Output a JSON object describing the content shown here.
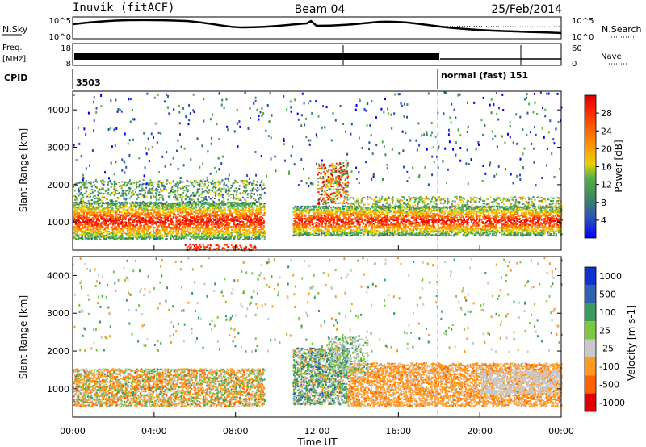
{
  "header": {
    "station": "Inuvik (fitACF)",
    "beam": "Beam 04",
    "date": "25/Feb/2014"
  },
  "noise_panel": {
    "left_label": "N.Sky",
    "right_label": "N.Search",
    "left_ticks": [
      "10^5",
      "10^0"
    ],
    "right_ticks": [
      "10^5",
      "10^0"
    ]
  },
  "freq_panel": {
    "left_label_top": "Freq.",
    "left_label_bottom": "[MHz]",
    "right_label": "Nave",
    "left_ticks": [
      "18",
      "8"
    ],
    "right_ticks": [
      "60",
      "0"
    ]
  },
  "cpid_panel": {
    "label": "CPID",
    "segments": [
      {
        "text": "3503",
        "start_hour": 0
      },
      {
        "text": "normal (fast) 151",
        "start_hour": 18
      }
    ]
  },
  "colors": {
    "power": [
      "#0000ff",
      "#3050b0",
      "#3a8a5a",
      "#52b048",
      "#f0d000",
      "#ff9800",
      "#ff6000",
      "#ff2000",
      "#e00000"
    ],
    "velocity": [
      "#e00000",
      "#ff6000",
      "#ff9a20",
      "#c8c8c8",
      "#7cc840",
      "#3a9a60",
      "#3060b0",
      "#1030d0"
    ]
  },
  "chart_data": [
    {
      "type": "heatmap",
      "panel": "power",
      "xlabel": "",
      "ylabel": "Slant Range [km]",
      "xlim_hours": [
        0,
        24
      ],
      "ylim_km": [
        250,
        4500
      ],
      "yticks": [
        1000,
        2000,
        3000,
        4000
      ],
      "colorbar": {
        "label": "Power [dB]",
        "range": [
          0,
          32
        ],
        "ticks": [
          4,
          8,
          12,
          16,
          20,
          24,
          28
        ]
      },
      "bands": [
        {
          "hours": [
            0,
            9.4
          ],
          "range_km": [
            550,
            1550
          ],
          "value_db": 24
        },
        {
          "hours": [
            10.8,
            24
          ],
          "range_km": [
            650,
            1450
          ],
          "value_db": 24
        },
        {
          "hours": [
            12,
            13.5
          ],
          "range_km": [
            1500,
            2600
          ],
          "value_db": 16
        }
      ]
    },
    {
      "type": "heatmap",
      "panel": "velocity",
      "xlabel": "Time UT",
      "ylabel": "Slant Range [km]",
      "xlim_hours": [
        0,
        24
      ],
      "ylim_km": [
        250,
        4500
      ],
      "yticks": [
        1000,
        2000,
        3000,
        4000
      ],
      "xticks": [
        "00:00",
        "04:00",
        "08:00",
        "12:00",
        "16:00",
        "20:00",
        "00:00"
      ],
      "colorbar": {
        "label": "Velocity [m s-1]",
        "ticks": [
          "1000",
          "500",
          "100",
          "25",
          "-25",
          "-100",
          "-500",
          "-1000"
        ]
      },
      "bands": [
        {
          "hours": [
            0,
            9.4
          ],
          "range_km": [
            550,
            1550
          ],
          "value_ms": -100
        },
        {
          "hours": [
            10.8,
            13.5
          ],
          "range_km": [
            600,
            2100
          ],
          "value_ms": 250
        },
        {
          "hours": [
            13.5,
            24
          ],
          "range_km": [
            550,
            1700
          ],
          "value_ms": -150
        }
      ]
    }
  ]
}
